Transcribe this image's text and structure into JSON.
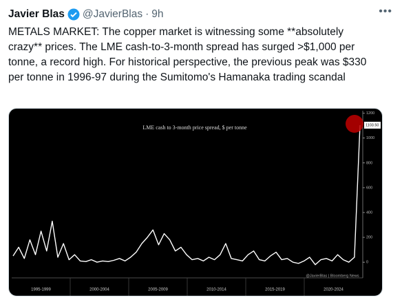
{
  "tweet": {
    "name": "Javier Blas",
    "handle": "@JavierBlas",
    "separator": "·",
    "time": "9h",
    "text": "METALS MARKET: The copper market is witnessing some **absolutely crazy** prices. The LME cash-to-3-month spread has surged >$1,000 per tonne, a record high. For historical perspective, the previous peak was $330 per tonne in 1996-97 during the Sumitomo's Hamanaka trading scandal"
  },
  "chart_data": {
    "type": "line",
    "title": "LME cash to 3-month price spread, $ per tonne",
    "source": "@JavierBlas | Bloomberg News",
    "period_labels": [
      "1995-1999",
      "2000-2004",
      "2005-2009",
      "2010-2014",
      "2015-2019",
      "2020-2024"
    ],
    "series": [
      {
        "name": "LME cash to 3-month price spread",
        "color": "#ffffff",
        "values": [
          50,
          120,
          30,
          180,
          60,
          250,
          90,
          330,
          40,
          150,
          20,
          60,
          10,
          5,
          20,
          0,
          10,
          5,
          15,
          30,
          10,
          40,
          80,
          150,
          200,
          260,
          140,
          230,
          180,
          90,
          120,
          60,
          20,
          30,
          10,
          40,
          20,
          60,
          150,
          30,
          20,
          10,
          60,
          90,
          20,
          10,
          50,
          80,
          20,
          30,
          0,
          -10,
          10,
          40,
          -20,
          20,
          30,
          10,
          60,
          20,
          0,
          40,
          1103.5
        ],
        "last_value_label": "1103.50"
      }
    ],
    "ylim": [
      -60,
      1220
    ],
    "yticks": [
      0,
      200,
      400,
      600,
      800,
      1000,
      1200
    ],
    "y_axis_side": "right"
  }
}
